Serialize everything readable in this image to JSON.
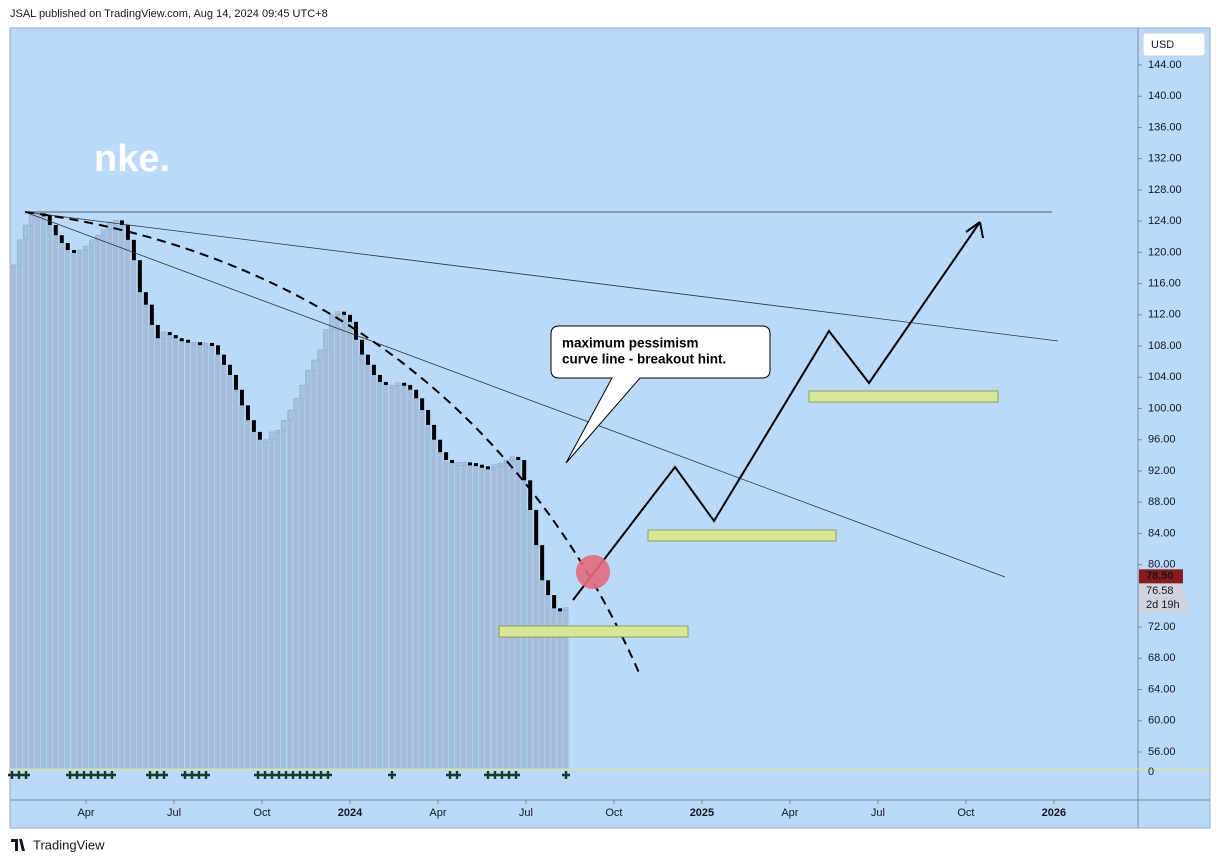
{
  "header": "JSAL published on TradingView.com, Aug 14, 2024 09:45 UTC+8",
  "footer": "TradingView",
  "chart_data": {
    "type": "candlestick",
    "title": "nke.",
    "currency": "USD",
    "annotation": [
      "maximum pessimism",
      "curve line - breakout hint."
    ],
    "x": [
      2023.045,
      2023.062,
      2023.079,
      2023.096,
      2023.113,
      2023.13,
      2023.147,
      2023.164,
      2023.181,
      2023.198,
      2023.216,
      2023.233,
      2023.25,
      2023.267,
      2023.284,
      2023.301,
      2023.318,
      2023.335,
      2023.352,
      2023.369,
      2023.386,
      2023.403,
      2023.42,
      2023.437,
      2023.454,
      2023.471,
      2023.488,
      2023.505,
      2023.522,
      2023.54,
      2023.557,
      2023.574,
      2023.591,
      2023.608,
      2023.625,
      2023.642,
      2023.659,
      2023.676,
      2023.693,
      2023.71,
      2023.727,
      2023.744,
      2023.761,
      2023.778,
      2023.795,
      2023.812,
      2023.83,
      2023.847,
      2023.864,
      2023.881,
      2023.898,
      2023.915,
      2023.932,
      2023.949,
      2023.966,
      2023.983,
      2024.0,
      2024.017,
      2024.034,
      2024.051,
      2024.068,
      2024.085,
      2024.102,
      2024.12,
      2024.137,
      2024.154,
      2024.171,
      2024.188,
      2024.205,
      2024.222,
      2024.239,
      2024.256,
      2024.273,
      2024.29,
      2024.307,
      2024.324,
      2024.341,
      2024.358,
      2024.375,
      2024.392,
      2024.41,
      2024.427,
      2024.444,
      2024.461,
      2024.478,
      2024.495,
      2024.512,
      2024.529,
      2024.546,
      2024.563,
      2024.58,
      2024.597,
      2024.614
    ],
    "values": [
      118.4,
      121.6,
      123.5,
      124.8,
      125.0,
      124.8,
      123.5,
      122.2,
      121.2,
      120.3,
      120.0,
      120.3,
      120.8,
      121.6,
      122.2,
      122.9,
      123.9,
      124.1,
      123.5,
      121.6,
      119.0,
      114.9,
      113.3,
      110.7,
      109.0,
      109.8,
      109.4,
      109.0,
      108.8,
      108.5,
      108.5,
      108.4,
      108.4,
      108.1,
      106.9,
      105.6,
      104.3,
      102.4,
      100.4,
      98.5,
      97.0,
      96.0,
      96.0,
      97.0,
      97.2,
      98.5,
      99.8,
      101.3,
      103.0,
      104.9,
      106.2,
      107.5,
      110.1,
      112.0,
      112.4,
      112.0,
      111.1,
      108.8,
      106.9,
      105.6,
      104.3,
      103.4,
      103.0,
      103.0,
      103.3,
      103.0,
      102.4,
      101.3,
      99.8,
      97.9,
      96.0,
      94.4,
      93.4,
      93.1,
      93.1,
      93.1,
      93.0,
      92.8,
      92.6,
      92.5,
      92.8,
      93.0,
      93.4,
      93.8,
      93.4,
      90.8,
      87.0,
      82.5,
      78.0,
      76.1,
      74.4,
      74.1,
      74.5
    ],
    "down_color": "#000000",
    "up_color": "#a9c3e2",
    "area_color": "#a4bddb",
    "background": "#bbd9f9",
    "xlim": [
      2023.034,
      2026.239
    ],
    "ylim": [
      49.85,
      148.74
    ],
    "xticks": [
      {
        "value": 2023.25,
        "label": "Apr"
      },
      {
        "value": 2023.5,
        "label": "Jul"
      },
      {
        "value": 2023.75,
        "label": "Oct"
      },
      2024,
      {
        "value": 2024.25,
        "label": "Apr"
      },
      {
        "value": 2024.5,
        "label": "Jul"
      },
      {
        "value": 2024.75,
        "label": "Oct"
      },
      2025,
      {
        "value": 2025.25,
        "label": "Apr"
      },
      {
        "value": 2025.5,
        "label": "Jul"
      },
      {
        "value": 2025.75,
        "label": "Oct"
      },
      2026
    ],
    "yticks": [
      {
        "value": 56,
        "label": "56.00"
      },
      {
        "value": 60,
        "label": "60.00"
      },
      {
        "value": 64,
        "label": "64.00"
      },
      {
        "value": 68,
        "label": "68.00"
      },
      {
        "value": 72,
        "label": "72.00"
      },
      {
        "value": 76,
        "label": "76.00"
      },
      {
        "value": 80,
        "label": "80.00"
      },
      {
        "value": 84,
        "label": "84.00"
      },
      {
        "value": 88,
        "label": "88.00"
      },
      {
        "value": 92,
        "label": "92.00"
      },
      {
        "value": 96,
        "label": "96.00"
      },
      {
        "value": 100,
        "label": "100.00"
      },
      {
        "value": 104,
        "label": "104.00"
      },
      {
        "value": 108,
        "label": "108.00"
      },
      {
        "value": 112,
        "label": "112.00"
      },
      {
        "value": 116,
        "label": "116.00"
      },
      {
        "value": 120,
        "label": "120.00"
      },
      {
        "value": 124,
        "label": "124.00"
      },
      {
        "value": 128,
        "label": "128.00"
      },
      {
        "value": 132,
        "label": "132.00"
      },
      {
        "value": 136,
        "label": "136.00"
      },
      {
        "value": 140,
        "label": "140.00"
      },
      {
        "value": 144,
        "label": "144.00"
      }
    ],
    "price_labels": [
      {
        "value": 78.5,
        "label": "78.50",
        "color": "#8b1a1a"
      },
      {
        "value": 76.58,
        "label": "76.58",
        "color": "#d1d4dc"
      }
    ],
    "countdown": "2d 19h",
    "volume_zero": 0
  }
}
